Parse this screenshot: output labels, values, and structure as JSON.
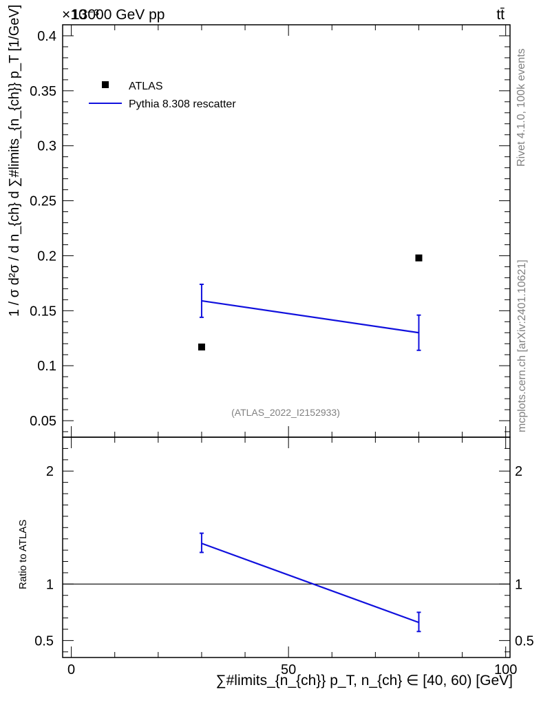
{
  "header": {
    "left": "13000 GeV pp",
    "right": "tt̄",
    "exponent": "×10⁻³"
  },
  "side_labels": {
    "rivet": "Rivet 4.1.0,  100k events",
    "mcplots": "mcplots.cern.ch [arXiv:2401.10621]"
  },
  "analysis_label": "(ATLAS_2022_I2152933)",
  "colors": {
    "mc": "#1010dd",
    "data": "#000000",
    "grey": "#808080"
  },
  "chart_data": [
    {
      "type": "scatter",
      "panel": "main",
      "ylabel": "1 / σ d²σ / d n_{ch} d ∑#limits_{n_{ch}} p_T [1/GeV]",
      "ylim": [
        0.035,
        0.41
      ],
      "yticks": [
        0.05,
        0.1,
        0.15,
        0.2,
        0.25,
        0.3,
        0.35,
        0.4
      ],
      "ytick_labels": [
        "0.05",
        "0.1",
        "0.15",
        "0.2",
        "0.25",
        "0.3",
        "0.35",
        "0.4"
      ],
      "xlim": [
        -2,
        101
      ],
      "legend_position": "top-left",
      "series": [
        {
          "name": "ATLAS",
          "kind": "markers",
          "x": [
            30,
            80
          ],
          "y": [
            0.117,
            0.198
          ]
        },
        {
          "name": "Pythia 8.308 rescatter",
          "kind": "line",
          "x": [
            30,
            80
          ],
          "y": [
            0.159,
            0.13
          ],
          "err_low": [
            0.144,
            0.114
          ],
          "err_high": [
            0.174,
            0.146
          ]
        }
      ]
    },
    {
      "type": "line",
      "panel": "ratio",
      "ylabel": "Ratio to ATLAS",
      "ylim": [
        0.35,
        2.3
      ],
      "yticks": [
        0.5,
        1,
        2
      ],
      "ytick_labels": [
        "0.5",
        "1",
        "2"
      ],
      "reference_line": 1,
      "xlim": [
        -2,
        101
      ],
      "xticks": [
        0,
        50,
        100
      ],
      "xtick_labels": [
        "0",
        "50",
        "100"
      ],
      "xlabel": "∑#limits_{n_{ch}} p_T, n_{ch} ∈ [40, 60) [GeV]",
      "series": [
        {
          "name": "Pythia 8.308 rescatter",
          "x": [
            30,
            80
          ],
          "y": [
            1.36,
            0.66
          ],
          "err_low": [
            1.28,
            0.58
          ],
          "err_high": [
            1.45,
            0.75
          ]
        }
      ]
    }
  ]
}
